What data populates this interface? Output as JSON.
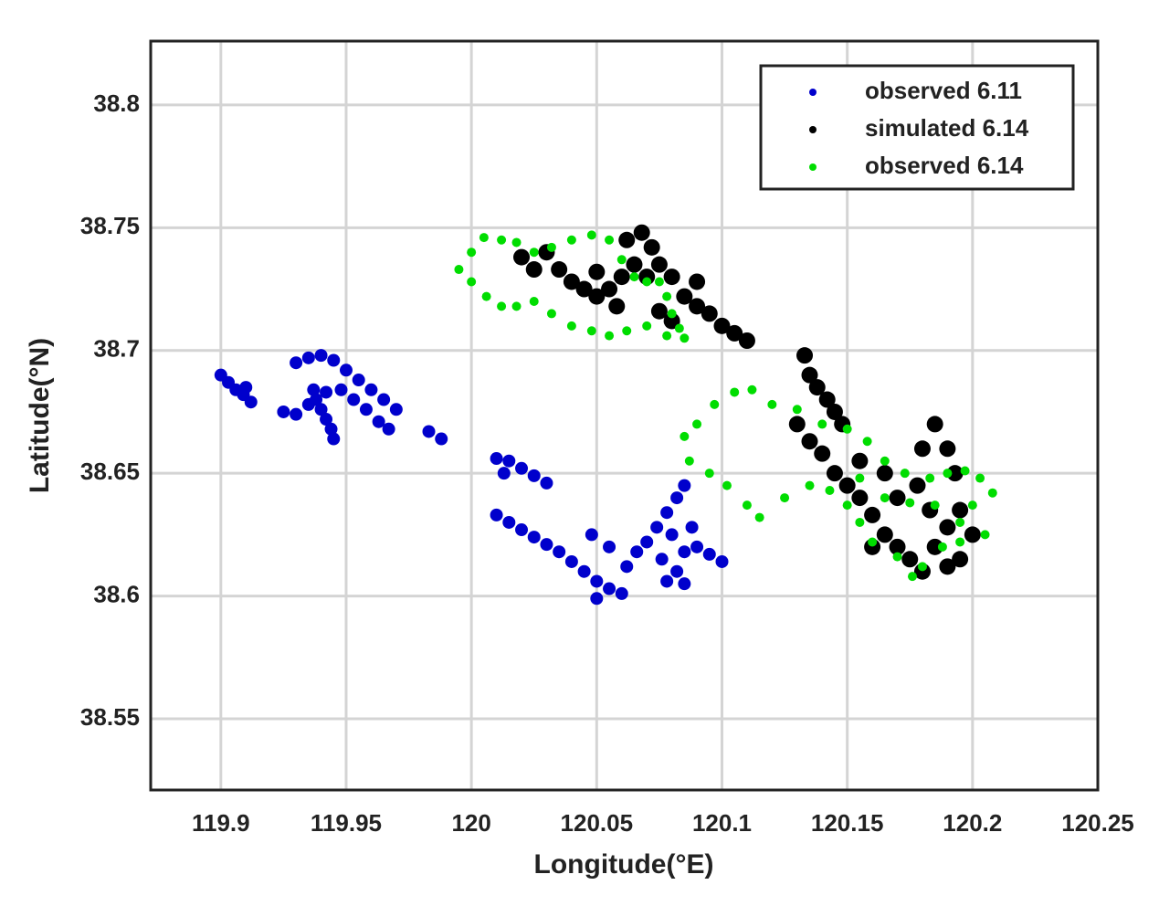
{
  "chart_data": {
    "type": "scatter",
    "x_label": "Longitude(°E)",
    "y_label": "Latitude(°N)",
    "xlim": [
      119.872,
      120.25
    ],
    "ylim": [
      38.521,
      38.826
    ],
    "xticks": [
      119.9,
      119.95,
      120,
      120.05,
      120.1,
      120.15,
      120.2,
      120.25
    ],
    "yticks": [
      38.55,
      38.6,
      38.65,
      38.7,
      38.75,
      38.8
    ],
    "grid": true,
    "legend": "upper right",
    "series": [
      {
        "name": "observed 6.11",
        "color": "#0000cc",
        "x": [
          119.9,
          119.903,
          119.906,
          119.909,
          119.912,
          119.91,
          119.925,
          119.93,
          119.935,
          119.938,
          119.94,
          119.942,
          119.944,
          119.945,
          119.937,
          119.942,
          119.93,
          119.935,
          119.94,
          119.945,
          119.95,
          119.955,
          119.96,
          119.965,
          119.97,
          119.948,
          119.953,
          119.958,
          119.963,
          119.967,
          119.983,
          119.988,
          120.01,
          120.015,
          120.02,
          120.025,
          120.03,
          120.013,
          120.01,
          120.015,
          120.02,
          120.025,
          120.03,
          120.035,
          120.04,
          120.045,
          120.05,
          120.055,
          120.06,
          120.05,
          120.048,
          120.055,
          120.062,
          120.066,
          120.07,
          120.074,
          120.078,
          120.082,
          120.085,
          120.08,
          120.085,
          120.088,
          120.082,
          120.09,
          120.095,
          120.1,
          120.078,
          120.085,
          120.076
        ],
        "y": [
          38.69,
          38.687,
          38.684,
          38.682,
          38.679,
          38.685,
          38.675,
          38.674,
          38.678,
          38.68,
          38.676,
          38.672,
          38.668,
          38.664,
          38.684,
          38.683,
          38.695,
          38.697,
          38.698,
          38.696,
          38.692,
          38.688,
          38.684,
          38.68,
          38.676,
          38.684,
          38.68,
          38.676,
          38.671,
          38.668,
          38.667,
          38.664,
          38.656,
          38.655,
          38.652,
          38.649,
          38.646,
          38.65,
          38.633,
          38.63,
          38.627,
          38.624,
          38.621,
          38.618,
          38.614,
          38.61,
          38.606,
          38.603,
          38.601,
          38.599,
          38.625,
          38.62,
          38.612,
          38.618,
          38.622,
          38.628,
          38.634,
          38.64,
          38.645,
          38.625,
          38.618,
          38.628,
          38.61,
          38.62,
          38.617,
          38.614,
          38.606,
          38.605,
          38.615
        ]
      },
      {
        "name": "simulated 6.14",
        "color": "#000000",
        "x": [
          120.02,
          120.025,
          120.03,
          120.035,
          120.04,
          120.045,
          120.05,
          120.055,
          120.06,
          120.065,
          120.062,
          120.068,
          120.072,
          120.07,
          120.075,
          120.08,
          120.085,
          120.09,
          120.08,
          120.075,
          120.09,
          120.095,
          120.1,
          120.105,
          120.11,
          120.058,
          120.05,
          120.133,
          120.135,
          120.138,
          120.142,
          120.145,
          120.148,
          120.13,
          120.135,
          120.14,
          120.145,
          120.15,
          120.155,
          120.16,
          120.165,
          120.16,
          120.17,
          120.175,
          120.18,
          120.185,
          120.19,
          120.195,
          120.193,
          120.19,
          120.185,
          120.18,
          120.178,
          120.17,
          120.165,
          120.155,
          120.2,
          120.195,
          120.19,
          120.183
        ],
        "y": [
          38.738,
          38.733,
          38.74,
          38.733,
          38.728,
          38.725,
          38.722,
          38.725,
          38.73,
          38.735,
          38.745,
          38.748,
          38.742,
          38.73,
          38.735,
          38.73,
          38.722,
          38.718,
          38.712,
          38.716,
          38.728,
          38.715,
          38.71,
          38.707,
          38.704,
          38.718,
          38.732,
          38.698,
          38.69,
          38.685,
          38.68,
          38.675,
          38.67,
          38.67,
          38.663,
          38.658,
          38.65,
          38.645,
          38.64,
          38.633,
          38.625,
          38.62,
          38.62,
          38.615,
          38.61,
          38.62,
          38.628,
          38.635,
          38.65,
          38.66,
          38.67,
          38.66,
          38.645,
          38.64,
          38.65,
          38.655,
          38.625,
          38.615,
          38.612,
          38.635
        ]
      },
      {
        "name": "observed 6.14",
        "color": "#00dd00",
        "x": [
          119.995,
          120.0,
          120.005,
          120.012,
          120.018,
          120.025,
          120.032,
          120.04,
          120.048,
          120.055,
          120.06,
          120.065,
          120.07,
          120.075,
          120.078,
          120.08,
          120.083,
          120.085,
          120.078,
          120.07,
          120.062,
          120.055,
          120.048,
          120.04,
          120.032,
          120.025,
          120.018,
          120.012,
          120.006,
          120.0,
          120.085,
          120.09,
          120.097,
          120.105,
          120.112,
          120.12,
          120.13,
          120.14,
          120.15,
          120.158,
          120.165,
          120.173,
          120.183,
          120.19,
          120.197,
          120.203,
          120.208,
          120.2,
          120.195,
          120.205,
          120.195,
          120.188,
          120.18,
          120.176,
          120.17,
          120.16,
          120.155,
          120.15,
          120.143,
          120.135,
          120.125,
          120.115,
          120.11,
          120.102,
          120.095,
          120.087,
          120.155,
          120.165,
          120.175,
          120.185
        ],
        "y": [
          38.733,
          38.74,
          38.746,
          38.745,
          38.744,
          38.74,
          38.742,
          38.745,
          38.747,
          38.745,
          38.737,
          38.73,
          38.728,
          38.728,
          38.722,
          38.715,
          38.709,
          38.705,
          38.706,
          38.71,
          38.708,
          38.706,
          38.708,
          38.71,
          38.715,
          38.72,
          38.718,
          38.718,
          38.722,
          38.728,
          38.665,
          38.67,
          38.678,
          38.683,
          38.684,
          38.678,
          38.676,
          38.67,
          38.668,
          38.663,
          38.655,
          38.65,
          38.648,
          38.65,
          38.651,
          38.648,
          38.642,
          38.637,
          38.63,
          38.625,
          38.622,
          38.62,
          38.612,
          38.608,
          38.616,
          38.622,
          38.63,
          38.637,
          38.643,
          38.645,
          38.64,
          38.632,
          38.637,
          38.645,
          38.65,
          38.655,
          38.648,
          38.64,
          38.638,
          38.637
        ]
      }
    ]
  }
}
